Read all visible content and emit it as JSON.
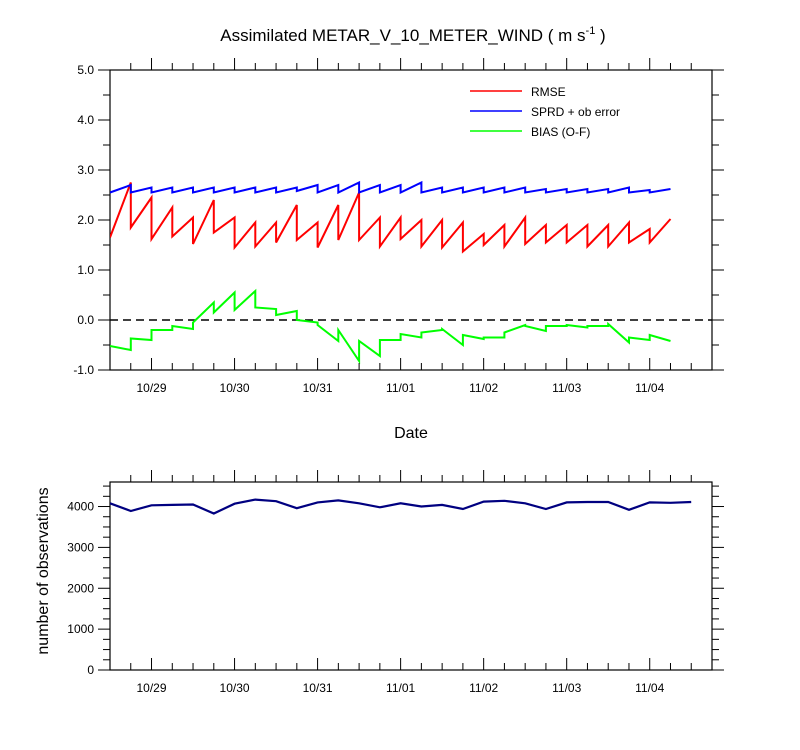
{
  "title": "Assimilated METAR_V_10_METER_WIND ( m s",
  "title_sup": "-1",
  "title_end": " )",
  "chart_data": [
    {
      "type": "line",
      "xlabel": "Date",
      "ylabel": "",
      "xlim": [
        0,
        7.25
      ],
      "ylim": [
        -1.0,
        5.0
      ],
      "x_ticks": [
        0.5,
        1.5,
        2.5,
        3.5,
        4.5,
        5.5,
        6.5
      ],
      "x_tick_labels": [
        "10/29",
        "10/30",
        "10/31",
        "11/01",
        "11/02",
        "11/03",
        "11/04"
      ],
      "y_ticks": [
        -1.0,
        0.0,
        1.0,
        2.0,
        3.0,
        4.0,
        5.0
      ],
      "y_tick_labels": [
        "-1.0",
        "0.0",
        "1.0",
        "2.0",
        "3.0",
        "4.0",
        "5.0"
      ],
      "legend_position": "top-right",
      "zero_line": true,
      "series": [
        {
          "name": "RMSE",
          "color": "#ff0000",
          "points": [
            [
              0,
              1.65
            ],
            [
              0.25,
              2.75
            ],
            [
              0.25,
              1.85
            ],
            [
              0.5,
              2.45
            ],
            [
              0.5,
              1.62
            ],
            [
              0.75,
              2.25
            ],
            [
              0.75,
              1.67
            ],
            [
              1.0,
              2.05
            ],
            [
              1.0,
              1.52
            ],
            [
              1.25,
              2.4
            ],
            [
              1.25,
              1.75
            ],
            [
              1.5,
              2.05
            ],
            [
              1.5,
              1.45
            ],
            [
              1.75,
              1.95
            ],
            [
              1.75,
              1.47
            ],
            [
              2.0,
              1.95
            ],
            [
              2.0,
              1.55
            ],
            [
              2.25,
              2.3
            ],
            [
              2.25,
              1.6
            ],
            [
              2.5,
              1.95
            ],
            [
              2.5,
              1.45
            ],
            [
              2.75,
              2.3
            ],
            [
              2.75,
              1.6
            ],
            [
              3.0,
              2.55
            ],
            [
              3.0,
              1.6
            ],
            [
              3.25,
              2.05
            ],
            [
              3.25,
              1.47
            ],
            [
              3.5,
              2.05
            ],
            [
              3.5,
              1.62
            ],
            [
              3.75,
              2.0
            ],
            [
              3.75,
              1.47
            ],
            [
              4.0,
              2.0
            ],
            [
              4.0,
              1.45
            ],
            [
              4.25,
              1.95
            ],
            [
              4.25,
              1.37
            ],
            [
              4.5,
              1.72
            ],
            [
              4.5,
              1.5
            ],
            [
              4.75,
              1.9
            ],
            [
              4.75,
              1.47
            ],
            [
              5.0,
              2.05
            ],
            [
              5.0,
              1.52
            ],
            [
              5.25,
              1.9
            ],
            [
              5.25,
              1.55
            ],
            [
              5.5,
              1.9
            ],
            [
              5.5,
              1.55
            ],
            [
              5.75,
              1.9
            ],
            [
              5.75,
              1.47
            ],
            [
              6.0,
              1.9
            ],
            [
              6.0,
              1.47
            ],
            [
              6.25,
              1.95
            ],
            [
              6.25,
              1.55
            ],
            [
              6.5,
              1.82
            ],
            [
              6.5,
              1.55
            ],
            [
              6.75,
              2.02
            ]
          ]
        },
        {
          "name": "SPRD + ob error",
          "color": "#0000ff",
          "points": [
            [
              0,
              2.55
            ],
            [
              0.25,
              2.7
            ],
            [
              0.25,
              2.55
            ],
            [
              0.5,
              2.65
            ],
            [
              0.5,
              2.55
            ],
            [
              0.75,
              2.65
            ],
            [
              0.75,
              2.55
            ],
            [
              1.0,
              2.65
            ],
            [
              1.0,
              2.55
            ],
            [
              1.25,
              2.65
            ],
            [
              1.25,
              2.55
            ],
            [
              1.5,
              2.65
            ],
            [
              1.5,
              2.55
            ],
            [
              1.75,
              2.65
            ],
            [
              1.75,
              2.55
            ],
            [
              2.0,
              2.65
            ],
            [
              2.0,
              2.55
            ],
            [
              2.25,
              2.65
            ],
            [
              2.25,
              2.58
            ],
            [
              2.5,
              2.7
            ],
            [
              2.5,
              2.55
            ],
            [
              2.75,
              2.7
            ],
            [
              2.75,
              2.55
            ],
            [
              3.0,
              2.75
            ],
            [
              3.0,
              2.55
            ],
            [
              3.25,
              2.7
            ],
            [
              3.25,
              2.55
            ],
            [
              3.5,
              2.7
            ],
            [
              3.5,
              2.55
            ],
            [
              3.75,
              2.75
            ],
            [
              3.75,
              2.55
            ],
            [
              4.0,
              2.65
            ],
            [
              4.0,
              2.55
            ],
            [
              4.25,
              2.65
            ],
            [
              4.25,
              2.55
            ],
            [
              4.5,
              2.65
            ],
            [
              4.5,
              2.55
            ],
            [
              4.75,
              2.65
            ],
            [
              4.75,
              2.55
            ],
            [
              5.0,
              2.65
            ],
            [
              5.0,
              2.55
            ],
            [
              5.25,
              2.62
            ],
            [
              5.25,
              2.55
            ],
            [
              5.5,
              2.62
            ],
            [
              5.5,
              2.55
            ],
            [
              5.75,
              2.62
            ],
            [
              5.75,
              2.55
            ],
            [
              6.0,
              2.62
            ],
            [
              6.0,
              2.55
            ],
            [
              6.25,
              2.65
            ],
            [
              6.25,
              2.55
            ],
            [
              6.5,
              2.6
            ],
            [
              6.5,
              2.55
            ],
            [
              6.75,
              2.62
            ]
          ]
        },
        {
          "name": "BIAS (O-F)",
          "color": "#00ff00",
          "points": [
            [
              0,
              -0.52
            ],
            [
              0.25,
              -0.6
            ],
            [
              0.25,
              -0.37
            ],
            [
              0.5,
              -0.4
            ],
            [
              0.5,
              -0.2
            ],
            [
              0.75,
              -0.2
            ],
            [
              0.75,
              -0.12
            ],
            [
              1.0,
              -0.18
            ],
            [
              1.0,
              -0.05
            ],
            [
              1.25,
              0.35
            ],
            [
              1.25,
              0.15
            ],
            [
              1.5,
              0.55
            ],
            [
              1.5,
              0.2
            ],
            [
              1.75,
              0.58
            ],
            [
              1.75,
              0.25
            ],
            [
              2.0,
              0.22
            ],
            [
              2.0,
              0.1
            ],
            [
              2.25,
              0.18
            ],
            [
              2.25,
              0.0
            ],
            [
              2.5,
              -0.05
            ],
            [
              2.5,
              -0.1
            ],
            [
              2.75,
              -0.42
            ],
            [
              2.75,
              -0.2
            ],
            [
              3.0,
              -0.82
            ],
            [
              3.0,
              -0.42
            ],
            [
              3.25,
              -0.72
            ],
            [
              3.25,
              -0.4
            ],
            [
              3.5,
              -0.4
            ],
            [
              3.5,
              -0.28
            ],
            [
              3.75,
              -0.35
            ],
            [
              3.75,
              -0.25
            ],
            [
              4.0,
              -0.2
            ],
            [
              4.0,
              -0.18
            ],
            [
              4.25,
              -0.5
            ],
            [
              4.25,
              -0.3
            ],
            [
              4.5,
              -0.38
            ],
            [
              4.5,
              -0.35
            ],
            [
              4.75,
              -0.35
            ],
            [
              4.75,
              -0.25
            ],
            [
              5.0,
              -0.1
            ],
            [
              5.0,
              -0.12
            ],
            [
              5.25,
              -0.22
            ],
            [
              5.25,
              -0.12
            ],
            [
              5.5,
              -0.12
            ],
            [
              5.5,
              -0.1
            ],
            [
              5.75,
              -0.15
            ],
            [
              5.75,
              -0.12
            ],
            [
              6.0,
              -0.12
            ],
            [
              6.0,
              -0.08
            ],
            [
              6.25,
              -0.45
            ],
            [
              6.25,
              -0.35
            ],
            [
              6.5,
              -0.4
            ],
            [
              6.5,
              -0.3
            ],
            [
              6.75,
              -0.42
            ]
          ]
        }
      ]
    },
    {
      "type": "line",
      "xlabel": "",
      "ylabel": "number of observations",
      "xlim": [
        0,
        7.25
      ],
      "ylim": [
        0,
        4600
      ],
      "x_ticks": [
        0.5,
        1.5,
        2.5,
        3.5,
        4.5,
        5.5,
        6.5
      ],
      "x_tick_labels": [
        "10/29",
        "10/30",
        "10/31",
        "11/01",
        "11/02",
        "11/03",
        "11/04"
      ],
      "y_ticks": [
        0,
        1000,
        2000,
        3000,
        4000
      ],
      "y_tick_labels": [
        "0",
        "1000",
        "2000",
        "3000",
        "4000"
      ],
      "series": [
        {
          "color": "#000080",
          "points": [
            [
              0,
              4080
            ],
            [
              0.25,
              3890
            ],
            [
              0.5,
              4030
            ],
            [
              0.75,
              4040
            ],
            [
              1.0,
              4050
            ],
            [
              1.25,
              3830
            ],
            [
              1.5,
              4070
            ],
            [
              1.75,
              4170
            ],
            [
              2.0,
              4130
            ],
            [
              2.25,
              3960
            ],
            [
              2.5,
              4100
            ],
            [
              2.75,
              4150
            ],
            [
              3.0,
              4080
            ],
            [
              3.25,
              3980
            ],
            [
              3.5,
              4080
            ],
            [
              3.75,
              4000
            ],
            [
              4.0,
              4040
            ],
            [
              4.25,
              3940
            ],
            [
              4.5,
              4120
            ],
            [
              4.75,
              4140
            ],
            [
              5.0,
              4080
            ],
            [
              5.25,
              3940
            ],
            [
              5.5,
              4100
            ],
            [
              5.75,
              4110
            ],
            [
              6.0,
              4110
            ],
            [
              6.25,
              3920
            ],
            [
              6.5,
              4100
            ],
            [
              6.75,
              4090
            ],
            [
              7.0,
              4110
            ]
          ]
        }
      ]
    }
  ]
}
